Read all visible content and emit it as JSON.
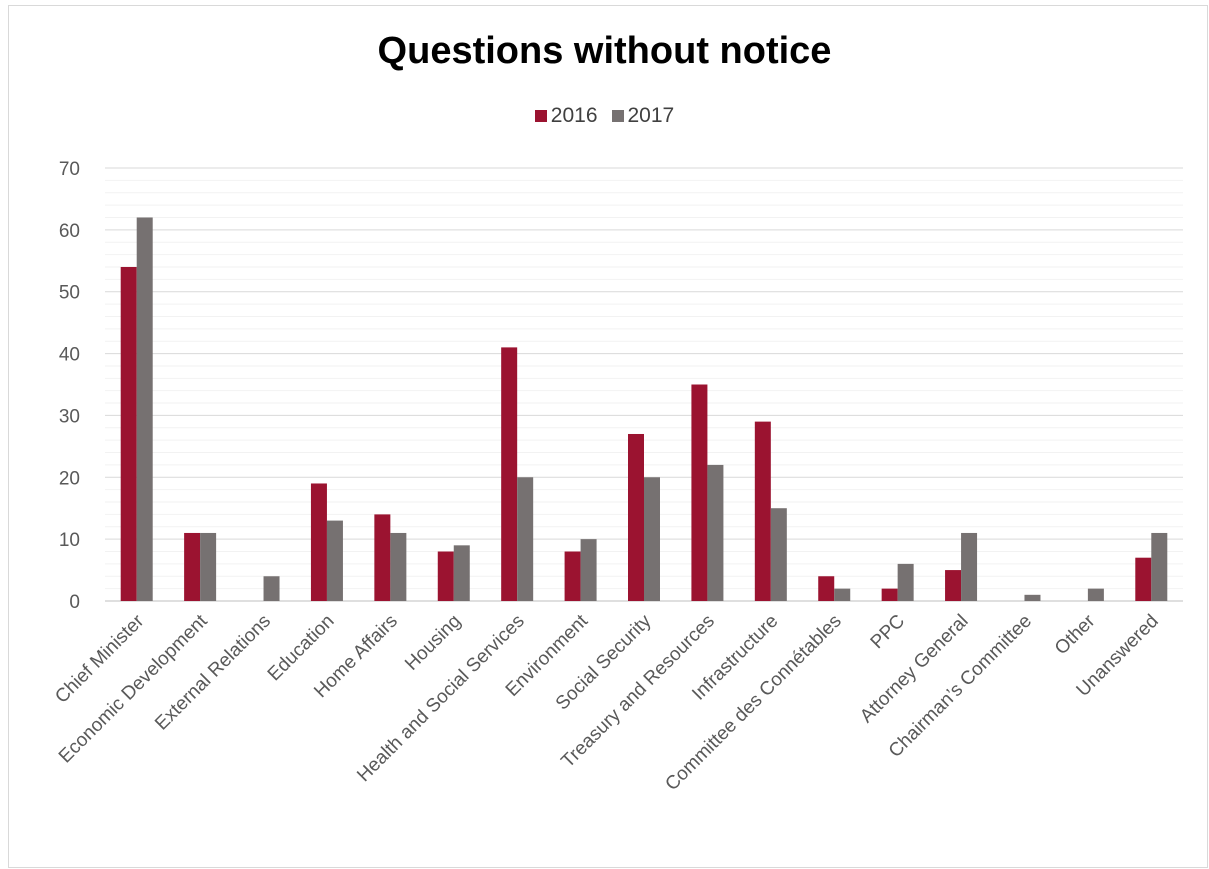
{
  "chart_data": {
    "type": "bar",
    "title": "Questions without notice",
    "categories": [
      "Chief Minister",
      "Economic Development",
      "External Relations",
      "Education",
      "Home Affairs",
      "Housing",
      "Health and Social Services",
      "Environment",
      "Social Security",
      "Treasury and Resources",
      "Infrastructure",
      "Committee des Connétables",
      "PPC",
      "Attorney General",
      "Chairman’s Committee",
      "Other",
      "Unanswered"
    ],
    "series": [
      {
        "name": "2016",
        "color": "#9b1330",
        "values": [
          54,
          11,
          0,
          19,
          14,
          8,
          41,
          8,
          27,
          35,
          29,
          4,
          2,
          5,
          0,
          0,
          7
        ]
      },
      {
        "name": "2017",
        "color": "#767171",
        "values": [
          62,
          11,
          4,
          13,
          11,
          9,
          20,
          10,
          20,
          22,
          15,
          2,
          6,
          11,
          1,
          2,
          11
        ]
      }
    ],
    "y_ticks": [
      "0",
      "10",
      "20",
      "30",
      "40",
      "50",
      "60",
      "70"
    ],
    "ylim": [
      0,
      70
    ],
    "grid": true,
    "legend_position": "top"
  }
}
